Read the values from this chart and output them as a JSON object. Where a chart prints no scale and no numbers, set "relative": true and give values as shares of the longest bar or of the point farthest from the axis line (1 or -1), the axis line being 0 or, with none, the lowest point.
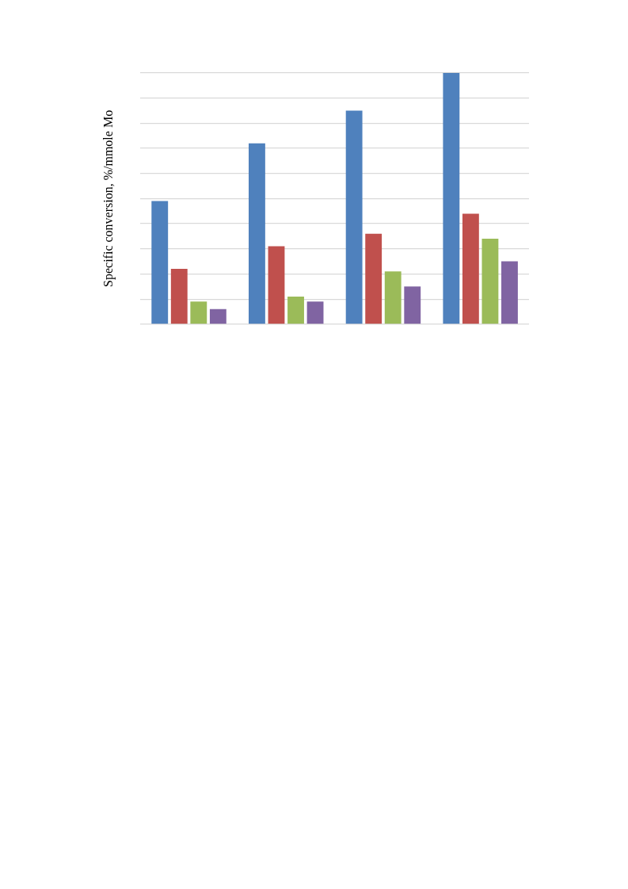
{
  "chart_data": {
    "type": "bar",
    "ylabel": "Specific conversion, %/mmole Mo",
    "relative": true,
    "grid": "y",
    "categories": [
      null,
      null,
      null,
      null
    ],
    "series": [
      {
        "color": "#4f81bd",
        "values": [
          0.49,
          0.72,
          0.85,
          1
        ]
      },
      {
        "color": "#c0504d",
        "values": [
          0.22,
          0.31,
          0.36,
          0.44
        ]
      },
      {
        "color": "#9bbb59",
        "values": [
          0.09,
          0.11,
          0.21,
          0.34
        ]
      },
      {
        "color": "#8064a2",
        "values": [
          0.06,
          0.09,
          0.15,
          0.25
        ]
      }
    ]
  }
}
